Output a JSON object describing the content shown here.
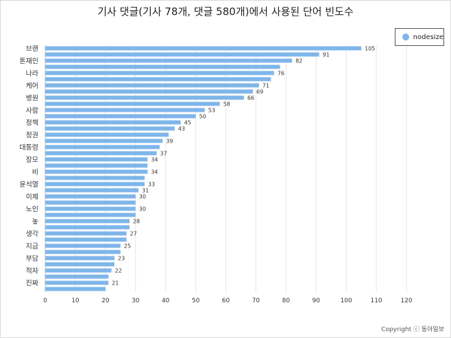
{
  "chart_data": {
    "type": "bar",
    "orientation": "horizontal",
    "title": "기사 댓글(기사 78개, 댓글 580개)에서 사용된 단어 빈도수",
    "series": [
      {
        "name": "nodesize",
        "color": "#7eb6ea"
      }
    ],
    "categories": [
      "브랜",
      "",
      "톤재인",
      "",
      "나라",
      "",
      "케어",
      "",
      "병원",
      "",
      "사람",
      "",
      "정책",
      "",
      "정권",
      "",
      "대통령",
      "",
      "장모",
      "",
      "비",
      "",
      "윤석열",
      "",
      "이제",
      "",
      "노인",
      "",
      "놓",
      "",
      "생각",
      "",
      "지금",
      "",
      "부담",
      "",
      "적자",
      "",
      "진짜",
      ""
    ],
    "values": [
      105,
      91,
      82,
      78,
      76,
      75,
      71,
      69,
      66,
      58,
      53,
      50,
      45,
      43,
      41,
      39,
      38,
      37,
      34,
      34,
      34,
      33,
      33,
      31,
      30,
      30,
      30,
      30,
      28,
      28,
      27,
      27,
      25,
      25,
      23,
      23,
      22,
      21,
      21,
      20
    ],
    "value_labels": [
      "105",
      "91",
      "82",
      "",
      "76",
      "",
      "71",
      "69",
      "66",
      "58",
      "53",
      "50",
      "45",
      "43",
      "",
      "39",
      "",
      "37",
      "34",
      "",
      "34",
      "",
      "33",
      "31",
      "30",
      "",
      "30",
      "",
      "28",
      "",
      "27",
      "",
      "25",
      "",
      "23",
      "",
      "22",
      "",
      "21",
      ""
    ],
    "xlim": [
      0,
      120
    ],
    "xticks": [
      "0",
      "10",
      "20",
      "30",
      "40",
      "50",
      "60",
      "70",
      "80",
      "90",
      "100",
      "110",
      "120"
    ],
    "grid": "vertical",
    "legend_position": "top-right"
  },
  "copyright": "Copyright ⓒ 동아일보"
}
